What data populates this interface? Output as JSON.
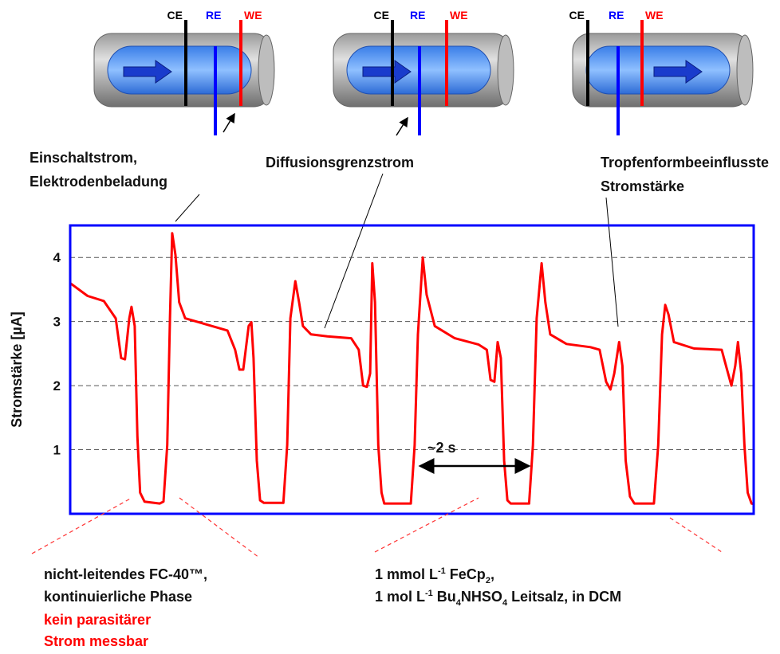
{
  "chart_data": {
    "type": "line",
    "y_label": "Stromstärke [µA]",
    "ylim": [
      0,
      4.5
    ],
    "yticks": [
      1,
      2,
      3,
      4
    ],
    "grid": true,
    "xlim": [
      0,
      12.6
    ],
    "frame_color": "#0000ff",
    "color": "#ff0000",
    "x": [
      0.0,
      0.32,
      0.62,
      0.84,
      0.94,
      1.01,
      1.09,
      1.13,
      1.19,
      1.24,
      1.29,
      1.37,
      1.65,
      1.72,
      1.79,
      1.84,
      1.88,
      1.94,
      2.01,
      2.12,
      2.53,
      2.9,
      3.04,
      3.12,
      3.19,
      3.29,
      3.34,
      3.38,
      3.44,
      3.5,
      3.57,
      3.93,
      4.0,
      4.06,
      4.15,
      4.22,
      4.29,
      4.44,
      4.74,
      5.18,
      5.32,
      5.4,
      5.47,
      5.53,
      5.57,
      5.62,
      5.68,
      5.74,
      5.79,
      6.28,
      6.35,
      6.41,
      6.5,
      6.57,
      6.72,
      7.09,
      7.53,
      7.68,
      7.75,
      7.82,
      7.88,
      7.94,
      8.0,
      8.06,
      8.12,
      8.46,
      8.53,
      8.6,
      8.69,
      8.76,
      8.85,
      9.15,
      9.59,
      9.76,
      9.88,
      9.96,
      10.03,
      10.12,
      10.18,
      10.24,
      10.32,
      10.4,
      10.76,
      10.84,
      10.91,
      10.97,
      11.03,
      11.13,
      11.5,
      12.01,
      12.09,
      12.19,
      12.26,
      12.31,
      12.37,
      12.43,
      12.49,
      12.56,
      12.6
    ],
    "values": [
      3.6,
      3.4,
      3.32,
      3.05,
      2.43,
      2.41,
      3.05,
      3.23,
      2.93,
      1.2,
      0.33,
      0.19,
      0.16,
      0.19,
      1.07,
      3.05,
      4.38,
      4.04,
      3.3,
      3.05,
      2.95,
      2.86,
      2.56,
      2.25,
      2.25,
      2.93,
      2.99,
      2.43,
      0.83,
      0.21,
      0.17,
      0.17,
      1.07,
      3.05,
      3.63,
      3.3,
      2.93,
      2.8,
      2.77,
      2.74,
      2.56,
      2.0,
      1.98,
      2.19,
      3.91,
      3.3,
      1.07,
      0.33,
      0.16,
      0.16,
      1.07,
      2.8,
      4.0,
      3.42,
      2.93,
      2.74,
      2.64,
      2.56,
      2.09,
      2.06,
      2.68,
      2.43,
      0.83,
      0.21,
      0.16,
      0.16,
      1.07,
      3.05,
      3.91,
      3.3,
      2.8,
      2.65,
      2.6,
      2.56,
      2.06,
      1.94,
      2.19,
      2.68,
      2.31,
      0.83,
      0.27,
      0.16,
      0.16,
      1.07,
      2.8,
      3.26,
      3.11,
      2.68,
      2.58,
      2.56,
      2.31,
      2.0,
      2.31,
      2.68,
      2.19,
      1.07,
      0.33,
      0.16,
      0.15
    ],
    "annotations": {
      "period": "~2 s",
      "switch_on": [
        "Einschaltstrom,",
        "Elektrodenbeladung"
      ],
      "diffusion": "Diffusionsgrenzstrom",
      "drop_shape": [
        "Tropfenformbeeinflusste",
        "Stromstärke"
      ],
      "phase": [
        "nicht-leitendes FC-40™,",
        "kontinuierliche Phase"
      ],
      "phase_note": [
        "kein parasitärer",
        "Strom messbar"
      ],
      "solution_line1": [
        "1 mmol L",
        "-1",
        " FeCp",
        "2",
        ","
      ],
      "solution_line2": [
        "1 mol L",
        "-1",
        " Bu",
        "4",
        "NHSO",
        "4",
        " Leitsalz, in DCM"
      ]
    }
  },
  "diagrams": {
    "cells": [
      {
        "labels": [
          "CE",
          "RE",
          "WE"
        ]
      },
      {
        "labels": [
          "CE",
          "RE",
          "WE"
        ]
      },
      {
        "labels": [
          "CE",
          "RE",
          "WE"
        ]
      }
    ]
  }
}
